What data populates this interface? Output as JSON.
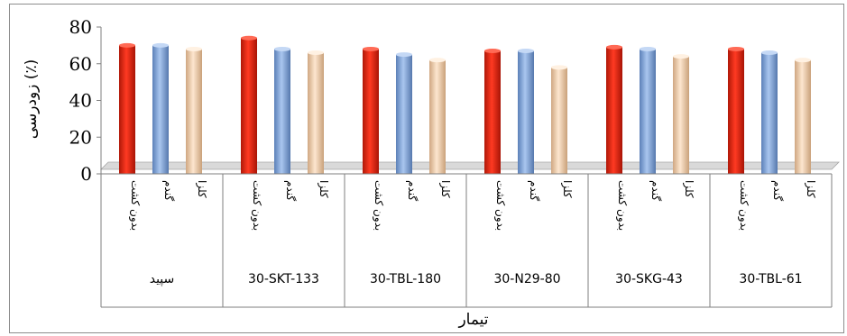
{
  "chart_data": {
    "type": "bar",
    "title": "",
    "xlabel": "تیمار",
    "ylabel": "زودرسی (٪)",
    "ylim": [
      0,
      80
    ],
    "yticks": [
      "0",
      "20",
      "40",
      "60",
      "80"
    ],
    "grid": false,
    "legend": "none",
    "groups": [
      "سپید",
      "30-SKT-133",
      "30-TBL-180",
      "30-N29-80",
      "30-SKG-43",
      "30-TBL-61"
    ],
    "categories": [
      "بدون کشت",
      "گندم",
      "کلزا"
    ],
    "colors": [
      "#e8301c",
      "#7fa6dc",
      "#f0cfae"
    ],
    "values": [
      [
        70,
        70,
        68
      ],
      [
        74,
        68,
        66
      ],
      [
        68,
        65,
        62
      ],
      [
        67,
        67,
        58
      ],
      [
        69,
        68,
        64
      ],
      [
        68,
        66,
        62
      ]
    ]
  }
}
